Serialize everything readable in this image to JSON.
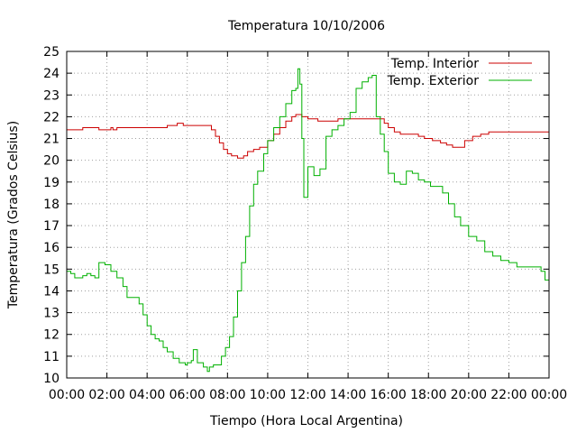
{
  "chart_data": {
    "type": "line",
    "title": "Temperatura 10/10/2006",
    "xlabel": "Tiempo (Hora Local Argentina)",
    "ylabel": "Temperatura (Grados Celsius)",
    "xlim": [
      0,
      24
    ],
    "ylim": [
      10,
      25
    ],
    "x_ticks": [
      "00:00",
      "02:00",
      "04:00",
      "06:00",
      "08:00",
      "10:00",
      "12:00",
      "14:00",
      "16:00",
      "18:00",
      "20:00",
      "22:00",
      "00:00"
    ],
    "y_ticks": [
      10,
      11,
      12,
      13,
      14,
      15,
      16,
      17,
      18,
      19,
      20,
      21,
      22,
      23,
      24,
      25
    ],
    "grid": true,
    "grid_style": "dotted",
    "legend_position": "top-right",
    "series": [
      {
        "name": "Temp. Interior",
        "color": "#cc0000",
        "x": [
          0.0,
          0.5,
          0.8,
          1.5,
          1.6,
          2.0,
          2.2,
          2.3,
          2.5,
          2.6,
          3.0,
          4.0,
          5.0,
          5.4,
          5.5,
          5.8,
          6.0,
          6.5,
          7.0,
          7.2,
          7.4,
          7.6,
          7.8,
          8.0,
          8.2,
          8.5,
          8.8,
          9.0,
          9.3,
          9.6,
          10.0,
          10.3,
          10.6,
          10.9,
          11.2,
          11.4,
          11.7,
          12.0,
          12.5,
          13.0,
          13.5,
          14.0,
          14.5,
          15.0,
          15.5,
          15.8,
          16.0,
          16.3,
          16.6,
          17.0,
          17.5,
          17.8,
          18.2,
          18.6,
          18.9,
          19.2,
          19.5,
          19.8,
          20.2,
          20.6,
          21.0,
          21.5,
          22.0,
          22.5,
          23.0,
          23.5,
          24.0
        ],
        "y": [
          21.4,
          21.4,
          21.5,
          21.5,
          21.4,
          21.4,
          21.5,
          21.4,
          21.5,
          21.5,
          21.5,
          21.5,
          21.6,
          21.6,
          21.7,
          21.6,
          21.6,
          21.6,
          21.6,
          21.4,
          21.1,
          20.8,
          20.5,
          20.3,
          20.2,
          20.1,
          20.2,
          20.4,
          20.5,
          20.6,
          20.9,
          21.2,
          21.5,
          21.8,
          22.0,
          22.1,
          22.0,
          21.9,
          21.8,
          21.8,
          21.9,
          21.9,
          21.9,
          21.9,
          21.9,
          21.7,
          21.5,
          21.3,
          21.2,
          21.2,
          21.1,
          21.0,
          20.9,
          20.8,
          20.7,
          20.6,
          20.6,
          20.9,
          21.1,
          21.2,
          21.3,
          21.3,
          21.3,
          21.3,
          21.3,
          21.3,
          21.4
        ]
      },
      {
        "name": "Temp. Exterior",
        "color": "#00b000",
        "x": [
          0.0,
          0.2,
          0.4,
          0.6,
          0.8,
          1.0,
          1.2,
          1.4,
          1.6,
          1.9,
          2.2,
          2.5,
          2.8,
          3.0,
          3.3,
          3.6,
          3.8,
          4.0,
          4.2,
          4.4,
          4.6,
          4.8,
          5.0,
          5.3,
          5.6,
          5.9,
          6.0,
          6.2,
          6.3,
          6.5,
          6.8,
          7.0,
          7.1,
          7.3,
          7.5,
          7.7,
          7.9,
          8.1,
          8.3,
          8.5,
          8.7,
          8.9,
          9.1,
          9.3,
          9.5,
          9.8,
          10.0,
          10.3,
          10.6,
          10.9,
          11.2,
          11.4,
          11.5,
          11.6,
          11.7,
          11.8,
          12.0,
          12.3,
          12.6,
          12.9,
          13.2,
          13.5,
          13.8,
          14.1,
          14.4,
          14.7,
          15.0,
          15.2,
          15.4,
          15.6,
          15.8,
          16.0,
          16.3,
          16.6,
          16.9,
          17.2,
          17.5,
          17.8,
          18.1,
          18.4,
          18.7,
          19.0,
          19.3,
          19.6,
          20.0,
          20.4,
          20.8,
          21.2,
          21.6,
          22.0,
          22.4,
          22.8,
          23.2,
          23.6,
          23.8,
          24.0
        ],
        "y": [
          14.9,
          14.8,
          14.6,
          14.6,
          14.7,
          14.8,
          14.7,
          14.6,
          15.3,
          15.2,
          14.9,
          14.6,
          14.2,
          13.7,
          13.7,
          13.4,
          12.9,
          12.4,
          12.0,
          11.8,
          11.7,
          11.4,
          11.2,
          10.9,
          10.7,
          10.6,
          10.7,
          10.8,
          11.3,
          10.7,
          10.5,
          10.3,
          10.5,
          10.6,
          10.6,
          11.0,
          11.4,
          11.9,
          12.8,
          14.0,
          15.3,
          16.5,
          17.9,
          18.9,
          19.5,
          20.3,
          20.9,
          21.5,
          22.0,
          22.6,
          23.2,
          23.3,
          24.2,
          23.5,
          21.0,
          18.3,
          19.7,
          19.3,
          19.6,
          21.1,
          21.4,
          21.6,
          21.9,
          22.2,
          23.3,
          23.6,
          23.8,
          23.9,
          22.0,
          21.2,
          20.4,
          19.4,
          19.0,
          18.9,
          19.5,
          19.4,
          19.1,
          19.0,
          18.8,
          18.8,
          18.5,
          18.0,
          17.4,
          17.0,
          16.5,
          16.3,
          15.8,
          15.6,
          15.4,
          15.3,
          15.1,
          15.1,
          15.1,
          14.9,
          14.5,
          14.1
        ]
      }
    ]
  }
}
